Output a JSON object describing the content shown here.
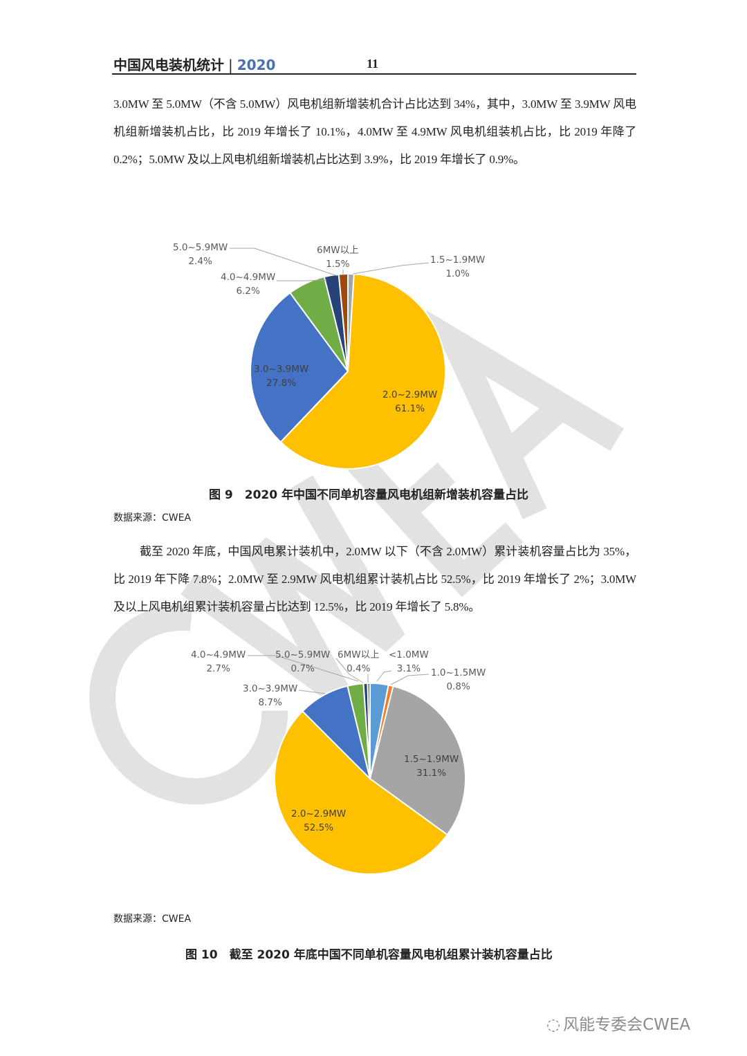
{
  "header": {
    "title": "中国风电装机统计",
    "separator": "|",
    "year": "2020",
    "page_number": "11"
  },
  "paragraph1": "3.0MW 至 5.0MW（不含 5.0MW）风电机组新增装机合计占比达到 34%，其中，3.0MW 至 3.9MW 风电机组新增装机占比，比 2019 年增长了 10.1%，4.0MW 至 4.9MW 风电机组装机占比，比 2019 年降了 0.2%；5.0MW 及以上风电机组新增装机占比达到 3.9%，比 2019 年增长了 0.9%。",
  "paragraph2": "截至 2020 年底，中国风电累计装机中，2.0MW 以下（不含 2.0MW）累计装机容量占比为 35%，比 2019 年下降 7.8%；2.0MW 至 2.9MW 风电机组累计装机占比 52.5%，比 2019 年增长了 2%；3.0MW 及以上风电机组累计装机容量占比达到 12.5%，比 2019 年增长了 5.8%。",
  "figure9": {
    "caption": "图 9　2020 年中国不同单机容量风电机组新增装机容量占比",
    "source": "数据来源：CWEA"
  },
  "figure10": {
    "caption": "图 10　截至 2020 年底中国不同单机容量风电机组累计装机容量占比",
    "source": "数据来源：CWEA"
  },
  "watermark": "CWEA",
  "footer_logo": "风能专委会CWEA",
  "chart_data": [
    {
      "type": "pie",
      "title": "",
      "categories": [
        "1.5~1.9MW",
        "2.0~2.9MW",
        "3.0~3.9MW",
        "4.0~4.9MW",
        "5.0~5.9MW",
        "6MW以上"
      ],
      "values": [
        1.0,
        61.1,
        27.8,
        6.2,
        2.4,
        1.5
      ],
      "labels": [
        "1.0%",
        "61.1%",
        "27.8%",
        "6.2%",
        "2.4%",
        "1.5%"
      ],
      "colors": [
        "#a5a5a5",
        "#ffc000",
        "#4472c4",
        "#70ad47",
        "#264478",
        "#9e480e"
      ]
    },
    {
      "type": "pie",
      "title": "",
      "categories": [
        "<1.0MW",
        "1.0~1.5MW",
        "1.5~1.9MW",
        "2.0~2.9MW",
        "3.0~3.9MW",
        "4.0~4.9MW",
        "5.0~5.9MW",
        "6MW以上"
      ],
      "values": [
        3.1,
        0.8,
        31.1,
        52.5,
        8.7,
        2.7,
        0.7,
        0.4
      ],
      "labels": [
        "3.1%",
        "0.8%",
        "31.1%",
        "52.5%",
        "8.7%",
        "2.7%",
        "0.7%",
        "0.4%"
      ],
      "colors": [
        "#5b9bd5",
        "#ed7d31",
        "#a5a5a5",
        "#ffc000",
        "#4472c4",
        "#70ad47",
        "#264478",
        "#9e480e"
      ]
    }
  ]
}
